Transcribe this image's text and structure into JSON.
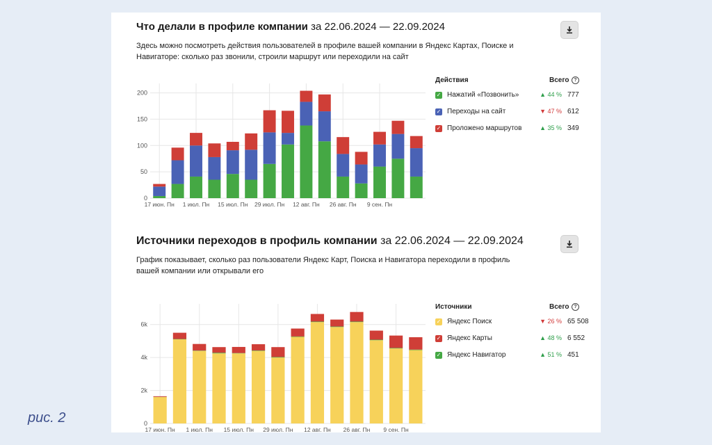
{
  "caption": "рис. 2",
  "colors": {
    "green": "#45a844",
    "blue": "#4a62b5",
    "red": "#cf3e37",
    "yellow": "#f7d25a",
    "grid": "#e6e6e6",
    "axis_text": "#555555",
    "up": "#2e9e4a",
    "down": "#d23a3a"
  },
  "download_icon": "download-icon",
  "sections": [
    {
      "title": "Что делали в профиле компании",
      "range": "за 22.06.2024 — 22.09.2024",
      "description": "Здесь можно посмотреть действия пользователей в профиле вашей компании в Яндекс Картах, Поиске и Навигаторе: сколько раз звонили, строили маршрут или переходили на сайт",
      "legend": {
        "header_label": "Действия",
        "header_total": "Всего",
        "items": [
          {
            "label": "Нажатий «Позвонить»",
            "color": "#45a844",
            "direction": "up",
            "change": "▲ 44 %",
            "total": "777"
          },
          {
            "label": "Переходы на сайт",
            "color": "#4a62b5",
            "direction": "down",
            "change": "▼ 47 %",
            "total": "612"
          },
          {
            "label": "Проложено маршрутов",
            "color": "#cf3e37",
            "direction": "up",
            "change": "▲ 35 %",
            "total": "349"
          }
        ]
      }
    },
    {
      "title": "Источники переходов в профиль компании",
      "range": "за 22.06.2024 — 22.09.2024",
      "description": "График показывает, сколько раз пользователи Яндекс Карт, Поиска и Навигатора переходили в профиль вашей компании или открывали его",
      "legend": {
        "header_label": "Источники",
        "header_total": "Всего",
        "items": [
          {
            "label": "Яндекс Поиск",
            "color": "#f7d25a",
            "direction": "down",
            "change": "▼ 26 %",
            "total": "65 508"
          },
          {
            "label": "Яндекс Карты",
            "color": "#cf3e37",
            "direction": "up",
            "change": "▲ 48 %",
            "total": "6 552"
          },
          {
            "label": "Яндекс Навигатор",
            "color": "#45a844",
            "direction": "up",
            "change": "▲ 51 %",
            "total": "451"
          }
        ]
      }
    }
  ],
  "chart_data": [
    {
      "type": "bar",
      "stacked": true,
      "grid": true,
      "legend_position": "right",
      "x_tick_labels": [
        "17 июн. Пн",
        "1 июл. Пн",
        "15 июл. Пн",
        "29 июл. Пн",
        "12 авг. Пн",
        "26 авг. Пн",
        "9 сен. Пн"
      ],
      "y_tick_labels": [
        "0",
        "50",
        "100",
        "150",
        "200"
      ],
      "ylim": [
        0,
        210
      ],
      "series": [
        {
          "name": "Нажатий «Позвонить»",
          "color": "#45a844",
          "values": [
            4,
            27,
            41,
            35,
            46,
            35,
            65,
            102,
            138,
            108,
            41,
            28,
            60,
            75,
            41
          ]
        },
        {
          "name": "Переходы на сайт",
          "color": "#4a62b5",
          "values": [
            18,
            45,
            59,
            43,
            45,
            57,
            60,
            22,
            45,
            57,
            43,
            36,
            42,
            47,
            54
          ]
        },
        {
          "name": "Проложено маршрутов",
          "color": "#cf3e37",
          "values": [
            5,
            24,
            24,
            26,
            16,
            31,
            42,
            42,
            21,
            32,
            32,
            24,
            24,
            25,
            23
          ]
        }
      ]
    },
    {
      "type": "bar",
      "stacked": true,
      "grid": true,
      "legend_position": "right",
      "x_tick_labels": [
        "17 июн. Пн",
        "1 июл. Пн",
        "15 июл. Пн",
        "29 июл. Пн",
        "12 авг. Пн",
        "26 авг. Пн",
        "9 сен. Пн"
      ],
      "y_tick_labels": [
        "0",
        "2k",
        "4k",
        "6k"
      ],
      "ylim": [
        0,
        7000
      ],
      "series": [
        {
          "name": "Яндекс Поиск",
          "color": "#f7d25a",
          "values": [
            1600,
            5100,
            4400,
            4250,
            4250,
            4400,
            4000,
            5250,
            6150,
            5850,
            6150,
            5050,
            4550,
            4450
          ]
        },
        {
          "name": "Яндекс Карты",
          "color": "#cf3e37",
          "values": [
            40,
            380,
            400,
            340,
            370,
            380,
            600,
            480,
            460,
            420,
            580,
            550,
            750,
            750
          ]
        },
        {
          "name": "Яндекс Навигатор",
          "color": "#45a844",
          "values": [
            10,
            20,
            20,
            40,
            20,
            25,
            30,
            25,
            30,
            30,
            30,
            30,
            30,
            30
          ]
        }
      ]
    }
  ]
}
